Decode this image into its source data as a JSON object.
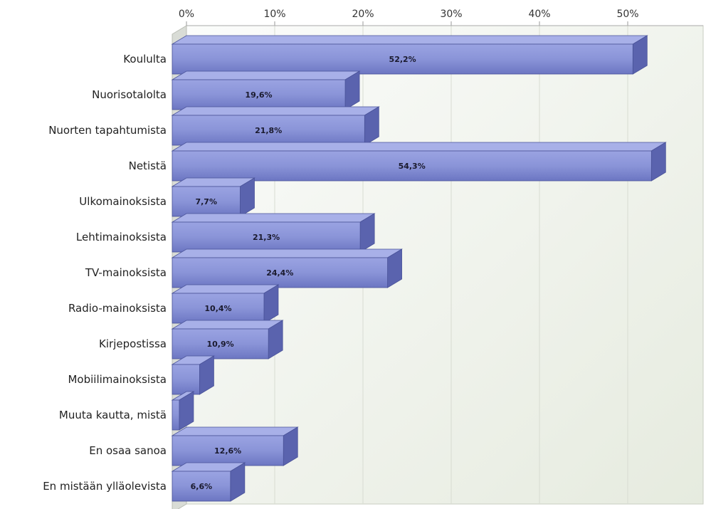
{
  "chart_data": {
    "type": "bar",
    "orientation": "horizontal",
    "three_d": true,
    "categories": [
      "Koululta",
      "Nuorisotalolta",
      "Nuorten tapahtumista",
      "Netistä",
      "Ulkomainoksista",
      "Lehtimainoksista",
      "TV-mainoksista",
      "Radio-mainoksista",
      "Kirjepostissa",
      "Mobiilimainoksista",
      "Muuta kautta, mistä",
      "En osaa sanoa",
      "En mistään ylläolevista"
    ],
    "values": [
      52.2,
      19.6,
      21.8,
      54.3,
      7.7,
      21.3,
      24.4,
      10.4,
      10.9,
      3.1,
      0.8,
      12.6,
      6.6
    ],
    "value_labels": [
      "52,2%",
      "19,6%",
      "21,8%",
      "54,3%",
      "7,7%",
      "21,3%",
      "24,4%",
      "10,4%",
      "10,9%",
      "",
      "",
      "12,6%",
      "6,6%"
    ],
    "x_ticks": [
      "0%",
      "10%",
      "20%",
      "30%",
      "40%",
      "50%"
    ],
    "xlim": [
      0,
      57
    ],
    "axis_position": "top",
    "grid": true,
    "colors": {
      "bar_front": "#8a94d8",
      "bar_front_dark": "#6c76c2",
      "bar_top": "#a8b0e8",
      "bar_side": "#5a63ae",
      "bar_edge": "#4a5399",
      "plot_bg_top": "#fbfcfb",
      "plot_bg_bottom": "#e6ebdf",
      "gridline": "#d8dcd2"
    }
  }
}
